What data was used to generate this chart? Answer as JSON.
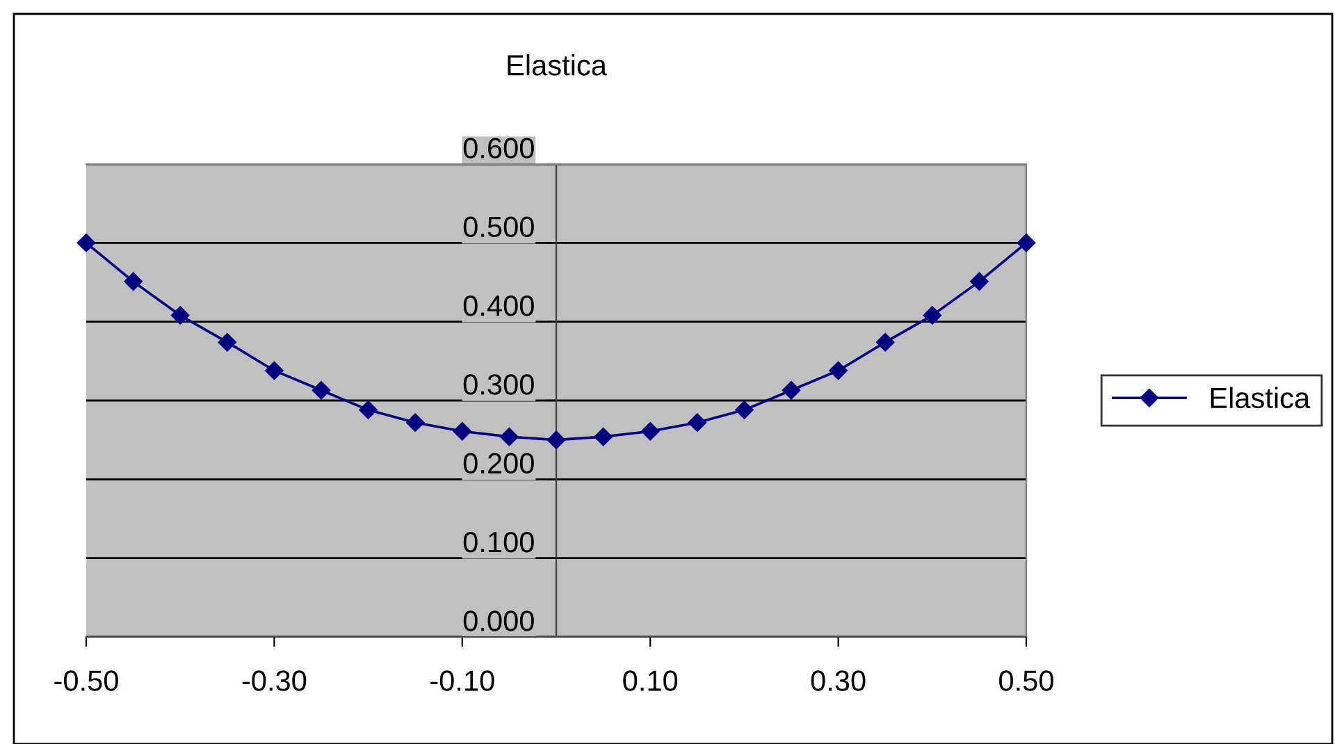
{
  "chart_data": {
    "type": "line",
    "title": "Elastica",
    "x": [
      -0.5,
      -0.45,
      -0.4,
      -0.35,
      -0.3,
      -0.25,
      -0.2,
      -0.15,
      -0.1,
      -0.05,
      0,
      0.05,
      0.1,
      0.15,
      0.2,
      0.25,
      0.3,
      0.35,
      0.4,
      0.45,
      0.5
    ],
    "series": [
      {
        "name": "Elastica",
        "color": "#000080",
        "values": [
          0.5,
          0.451,
          0.408,
          0.374,
          0.338,
          0.313,
          0.288,
          0.272,
          0.261,
          0.254,
          0.25,
          0.254,
          0.261,
          0.272,
          0.288,
          0.313,
          0.338,
          0.374,
          0.408,
          0.451,
          0.5
        ]
      }
    ],
    "xlim": [
      -0.5,
      0.5
    ],
    "xticks": [
      {
        "value": -0.5,
        "label": "-0.50"
      },
      {
        "value": -0.3,
        "label": "-0.30"
      },
      {
        "value": -0.1,
        "label": "-0.10"
      },
      {
        "value": 0.1,
        "label": "0.10"
      },
      {
        "value": 0.3,
        "label": "0.30"
      },
      {
        "value": 0.5,
        "label": "0.50"
      }
    ],
    "ylim": [
      0,
      0.6
    ],
    "yticks": [
      {
        "value": 0,
        "label": "0.000"
      },
      {
        "value": 0.1,
        "label": "0.100"
      },
      {
        "value": 0.2,
        "label": "0.200"
      },
      {
        "value": 0.3,
        "label": "0.300"
      },
      {
        "value": 0.4,
        "label": "0.400"
      },
      {
        "value": 0.5,
        "label": "0.500"
      },
      {
        "value": 0.6,
        "label": "0.600"
      }
    ],
    "grid": "y",
    "legend": "right",
    "marker": "diamond",
    "line_style": "solid"
  }
}
